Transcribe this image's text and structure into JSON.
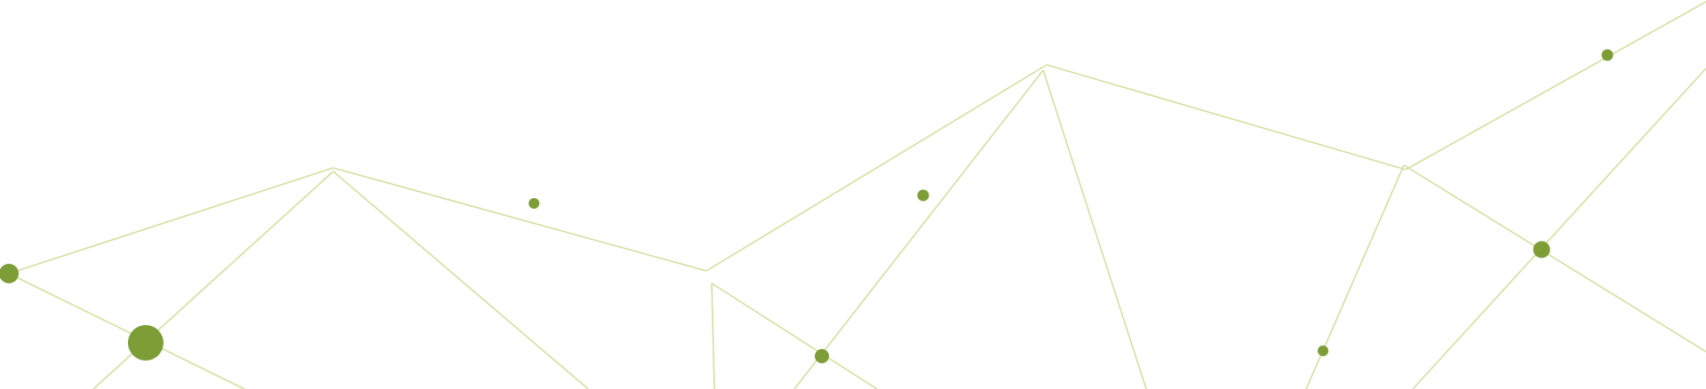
{
  "background_color": "#ffffff",
  "line_color": "#d3df9f",
  "node_color": "#7d9d37"
}
